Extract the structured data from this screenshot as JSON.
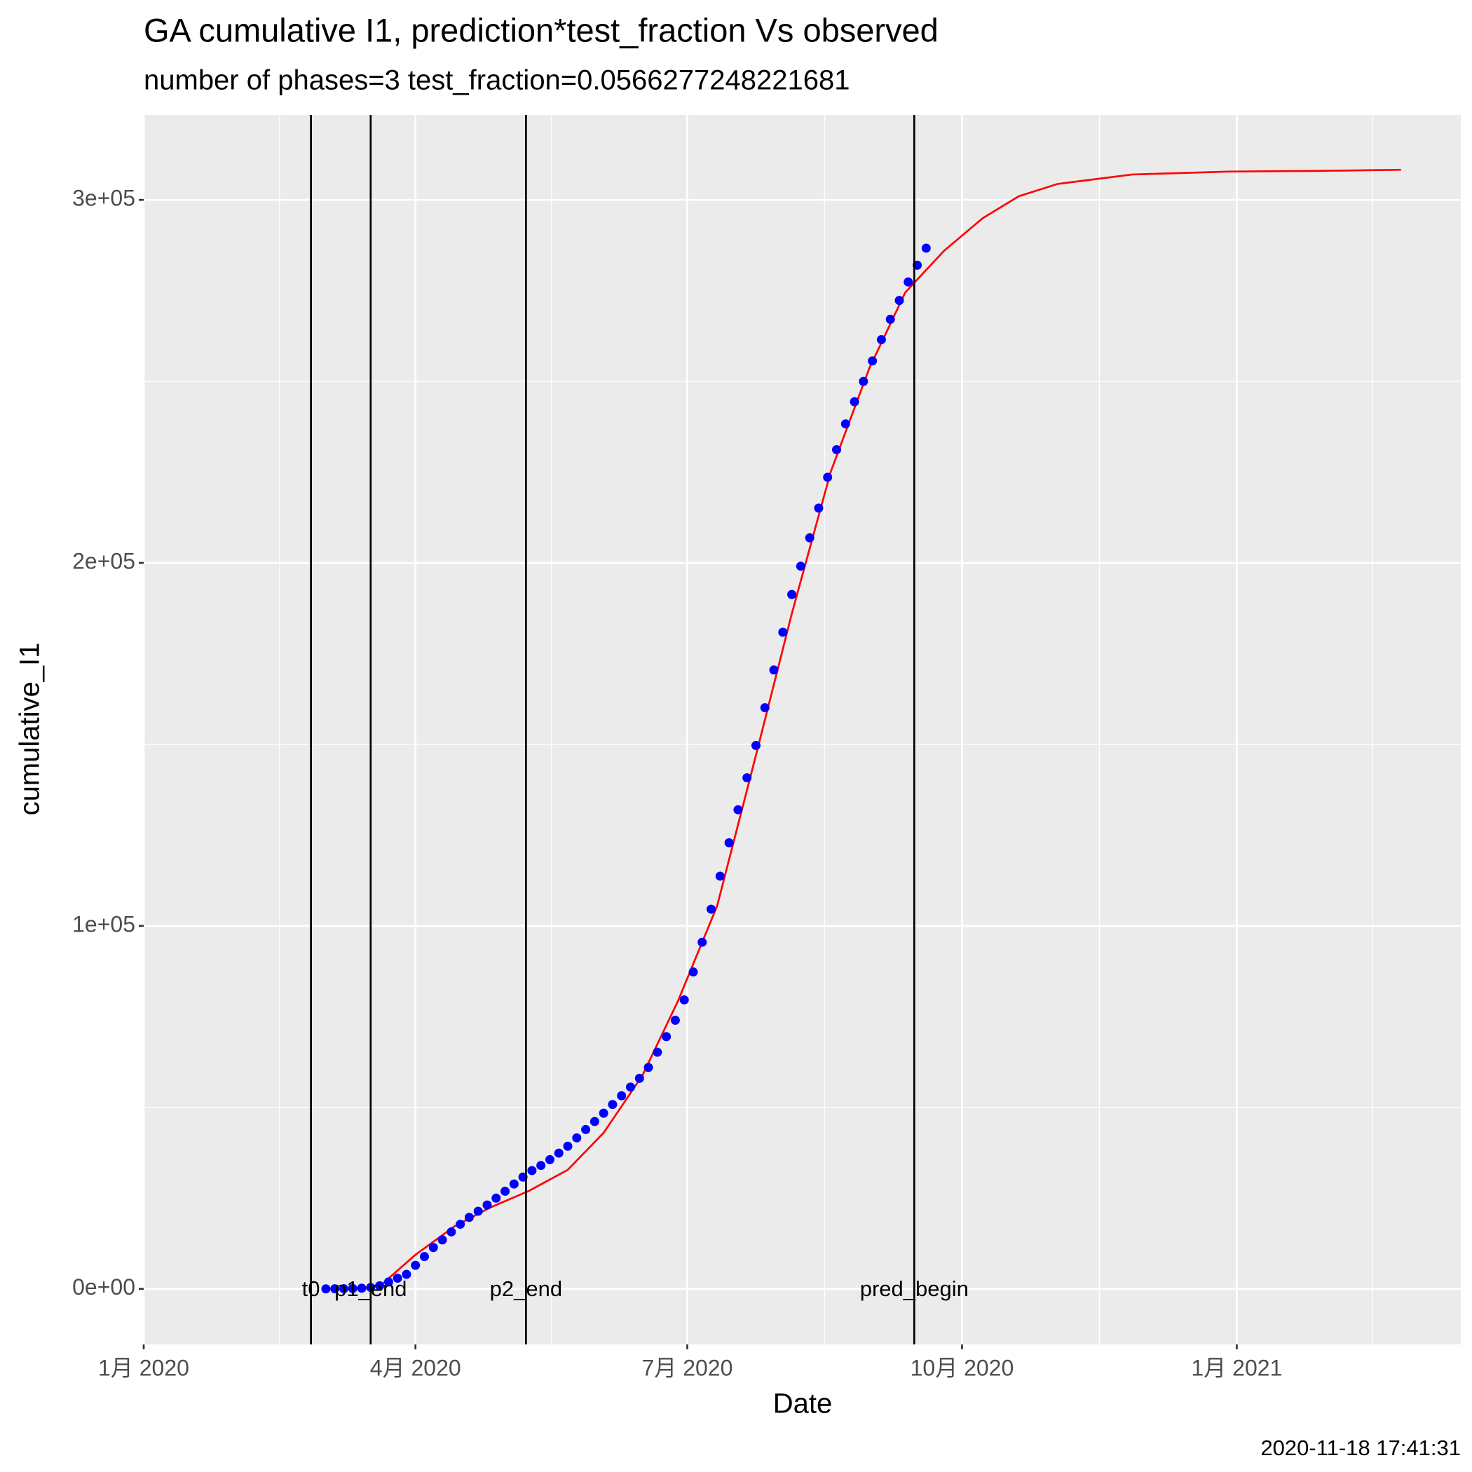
{
  "chart_data": {
    "type": "line",
    "title": "GA cumulative I1,  prediction*test_fraction Vs observed",
    "subtitle": "number of phases=3      test_fraction=0.0566277248221681",
    "x_label": "Date",
    "y_label": "cumulative_I1",
    "caption": "2020-11-18 17:41:31",
    "xlim": [
      "2020-01-01",
      "2021-03-17"
    ],
    "xticks": [
      {
        "value": "2020-01-01",
        "label": "1月 2020"
      },
      {
        "value": "2020-04-01",
        "label": "4月 2020"
      },
      {
        "value": "2020-07-01",
        "label": "7月 2020"
      },
      {
        "value": "2020-10-01",
        "label": "10月 2020"
      },
      {
        "value": "2021-01-01",
        "label": "1月 2021"
      }
    ],
    "ylim": [
      -15300,
      323400
    ],
    "yticks": [
      {
        "value": 0,
        "label": "0e+00"
      },
      {
        "value": 100000,
        "label": "1e+05"
      },
      {
        "value": 200000,
        "label": "2e+05"
      },
      {
        "value": 300000,
        "label": "3e+05"
      }
    ],
    "grid": true,
    "vlines": [
      {
        "x": "2020-02-26",
        "label": "t0"
      },
      {
        "x": "2020-03-17",
        "label": "p1_end"
      },
      {
        "x": "2020-05-08",
        "label": "p2_end"
      },
      {
        "x": "2020-09-15",
        "label": "pred_begin"
      }
    ],
    "series": [
      {
        "type": "scatter",
        "color": "#0000ff",
        "x": [
          "2020-03-02",
          "2020-03-05",
          "2020-03-08",
          "2020-03-11",
          "2020-03-14",
          "2020-03-17",
          "2020-03-20",
          "2020-03-23",
          "2020-03-26",
          "2020-03-29",
          "2020-04-01",
          "2020-04-04",
          "2020-04-07",
          "2020-04-10",
          "2020-04-13",
          "2020-04-16",
          "2020-04-19",
          "2020-04-22",
          "2020-04-25",
          "2020-04-28",
          "2020-05-01",
          "2020-05-04",
          "2020-05-07",
          "2020-05-10",
          "2020-05-13",
          "2020-05-16",
          "2020-05-19",
          "2020-05-22",
          "2020-05-25",
          "2020-05-28",
          "2020-05-31",
          "2020-06-03",
          "2020-06-06",
          "2020-06-09",
          "2020-06-12",
          "2020-06-15",
          "2020-06-18",
          "2020-06-21",
          "2020-06-24",
          "2020-06-27",
          "2020-06-30",
          "2020-07-03",
          "2020-07-06",
          "2020-07-09",
          "2020-07-12",
          "2020-07-15",
          "2020-07-18",
          "2020-07-21",
          "2020-07-24",
          "2020-07-27",
          "2020-07-30",
          "2020-08-02",
          "2020-08-05",
          "2020-08-08",
          "2020-08-11",
          "2020-08-14",
          "2020-08-17",
          "2020-08-20",
          "2020-08-23",
          "2020-08-26",
          "2020-08-29",
          "2020-09-01",
          "2020-09-04",
          "2020-09-07",
          "2020-09-10",
          "2020-09-13",
          "2020-09-16",
          "2020-09-19"
        ],
        "values": [
          0,
          30,
          60,
          100,
          200,
          400,
          850,
          1900,
          2950,
          4000,
          6500,
          8900,
          11400,
          13500,
          15700,
          17800,
          19700,
          21400,
          23100,
          25000,
          26900,
          28900,
          30800,
          32600,
          34000,
          35600,
          37400,
          39300,
          41600,
          43900,
          46100,
          48400,
          50800,
          53200,
          55600,
          58000,
          61000,
          65200,
          69500,
          74000,
          79600,
          87300,
          95500,
          104600,
          113700,
          122900,
          132000,
          140800,
          149700,
          160100,
          170500,
          180900,
          191300,
          199100,
          206900,
          215100,
          223600,
          231200,
          238300,
          244400,
          250000,
          255650,
          261500,
          267100,
          272300,
          277400,
          282000,
          286700
        ]
      },
      {
        "type": "line",
        "color": "#ff0000",
        "x": [
          "2020-03-19",
          "2020-04-01",
          "2020-04-14",
          "2020-04-26",
          "2020-05-09",
          "2020-05-22",
          "2020-06-03",
          "2020-06-16",
          "2020-06-28",
          "2020-07-11",
          "2020-07-24",
          "2020-08-05",
          "2020-08-18",
          "2020-08-31",
          "2020-09-12",
          "2020-09-25",
          "2020-10-08",
          "2020-10-20",
          "2020-11-02",
          "2020-11-27",
          "2020-12-29",
          "2021-01-29",
          "2021-02-25"
        ],
        "values": [
          0,
          9400,
          17200,
          22400,
          27000,
          32800,
          43000,
          58800,
          79500,
          105500,
          147000,
          186000,
          225000,
          253700,
          274500,
          286000,
          295000,
          301000,
          304400,
          307000,
          307800,
          308000,
          308300
        ]
      }
    ]
  }
}
